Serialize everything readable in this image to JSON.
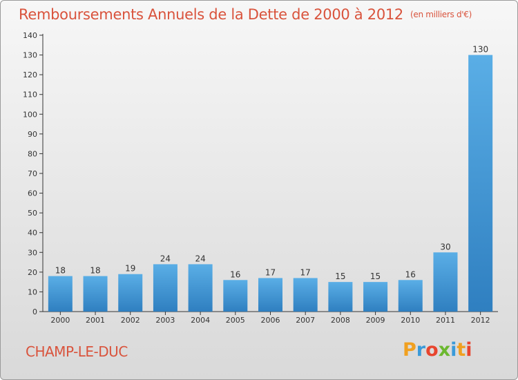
{
  "header": {
    "title": "Remboursements Annuels de la Dette de 2000 à 2012",
    "subtitle": "(en milliers d'€)"
  },
  "footer": {
    "commune": "CHAMP-LE-DUC",
    "brand": {
      "letters": [
        "P",
        "r",
        "o",
        "x",
        "i",
        "t",
        "i"
      ],
      "colors": [
        "#f0a020",
        "#3a9ad9",
        "#e8452e",
        "#6bb82f",
        "#3a9ad9",
        "#f0a020",
        "#e8452e"
      ]
    }
  },
  "chart_data": {
    "type": "bar",
    "categories": [
      "2000",
      "2001",
      "2002",
      "2003",
      "2004",
      "2005",
      "2006",
      "2007",
      "2008",
      "2009",
      "2010",
      "2011",
      "2012"
    ],
    "values": [
      18,
      18,
      19,
      24,
      24,
      16,
      17,
      17,
      15,
      15,
      16,
      30,
      130
    ],
    "data_labels": [
      "18",
      "18",
      "19",
      "24",
      "24",
      "16",
      "17",
      "17",
      "15",
      "15",
      "16",
      "30",
      "130"
    ],
    "yticks": [
      0,
      10,
      20,
      30,
      40,
      50,
      60,
      70,
      80,
      90,
      100,
      110,
      120,
      130,
      140
    ],
    "ylim": [
      0,
      140
    ],
    "grid": false,
    "bar_color_top": "#5aaee6",
    "bar_color_bottom": "#2f7fc0",
    "title": "Remboursements Annuels de la Dette de 2000 à 2012",
    "subtitle": "(en milliers d'€)"
  }
}
